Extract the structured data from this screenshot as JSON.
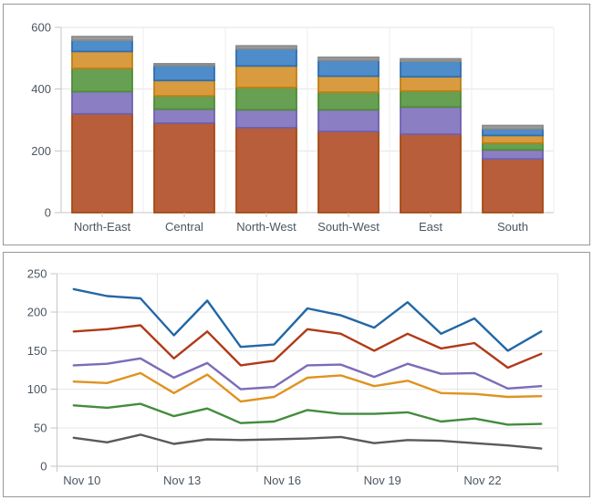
{
  "theme": {
    "panel_border": "#989898",
    "grid_color": "#E6E6E6",
    "vgrid_color": "#EDEDED",
    "axis_color": "#C6C6C6",
    "label_color": "#4A5561"
  },
  "chart_data": [
    {
      "type": "bar",
      "stacked": true,
      "title": "",
      "legend": "none",
      "grid": true,
      "categories": [
        "North-East",
        "Central",
        "North-West",
        "South-West",
        "East",
        "South"
      ],
      "series": [
        {
          "color_name": "rust",
          "fill": "#B85E3B",
          "stroke": "#A54A12",
          "values": [
            320,
            290,
            275,
            263,
            254,
            174
          ]
        },
        {
          "color_name": "purple",
          "fill": "#8C7EC3",
          "stroke": "#6F61B1",
          "values": [
            72,
            45,
            58,
            70,
            88,
            29
          ]
        },
        {
          "color_name": "green",
          "fill": "#67A053",
          "stroke": "#4E8C38",
          "values": [
            75,
            43,
            72,
            57,
            52,
            22
          ]
        },
        {
          "color_name": "orange",
          "fill": "#D99B3F",
          "stroke": "#C17F12",
          "values": [
            55,
            50,
            70,
            52,
            46,
            25
          ]
        },
        {
          "color_name": "blue",
          "fill": "#4F8DCA",
          "stroke": "#2F6EB0",
          "values": [
            36,
            48,
            55,
            51,
            50,
            21
          ]
        },
        {
          "color_name": "gray",
          "fill": "#9C9C9C",
          "stroke": "#8A8A8A",
          "values": [
            12,
            6,
            10,
            10,
            8,
            11
          ]
        }
      ],
      "y_axis": {
        "ticks": [
          0,
          200,
          400,
          600
        ],
        "tick_labels": [
          "0",
          "200",
          "400",
          "600"
        ],
        "max": 600
      },
      "ylim": [
        0,
        600
      ]
    },
    {
      "type": "line",
      "title": "",
      "legend": "none",
      "grid": true,
      "points_per_series": 15,
      "x_tick_labels": [
        "Nov 10",
        "Nov 13",
        "Nov 16",
        "Nov 19",
        "Nov 22"
      ],
      "x_label_point_indices": [
        0,
        3,
        6,
        9,
        12
      ],
      "x_gridline_point_steps": 3,
      "series": [
        {
          "color_name": "blue",
          "stroke": "#2267A5",
          "values": [
            230,
            221,
            218,
            170,
            215,
            155,
            158,
            205,
            196,
            180,
            213,
            172,
            192,
            150,
            175
          ]
        },
        {
          "color_name": "red",
          "stroke": "#B13917",
          "values": [
            175,
            178,
            183,
            140,
            175,
            131,
            137,
            178,
            172,
            150,
            172,
            153,
            160,
            128,
            146
          ]
        },
        {
          "color_name": "purple",
          "stroke": "#7D6BB8",
          "values": [
            131,
            133,
            140,
            115,
            134,
            100,
            103,
            131,
            132,
            116,
            133,
            120,
            121,
            101,
            104
          ]
        },
        {
          "color_name": "orange",
          "stroke": "#E0921F",
          "values": [
            110,
            108,
            121,
            95,
            119,
            84,
            90,
            115,
            118,
            104,
            111,
            95,
            94,
            90,
            91
          ]
        },
        {
          "color_name": "green",
          "stroke": "#448B3D",
          "values": [
            79,
            76,
            81,
            65,
            75,
            56,
            58,
            73,
            68,
            68,
            70,
            58,
            62,
            54,
            55
          ]
        },
        {
          "color_name": "gray",
          "stroke": "#5A5A5A",
          "values": [
            37,
            31,
            41,
            29,
            35,
            34,
            35,
            36,
            38,
            30,
            34,
            33,
            30,
            27,
            23
          ]
        }
      ],
      "y_axis": {
        "ticks": [
          0,
          50,
          100,
          150,
          200,
          250
        ],
        "tick_labels": [
          "0",
          "50",
          "100",
          "150",
          "200",
          "250"
        ],
        "max": 250
      },
      "ylim": [
        0,
        250
      ]
    }
  ]
}
